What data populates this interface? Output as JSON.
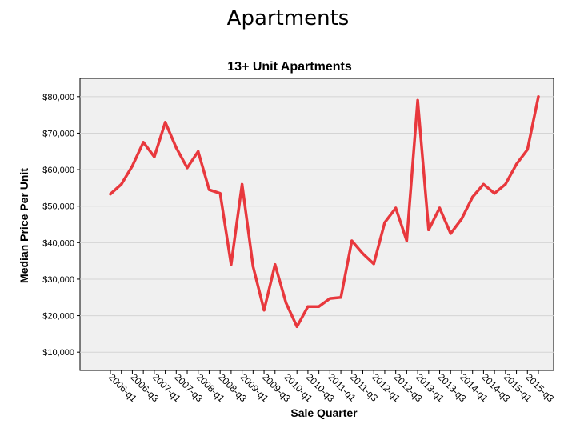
{
  "slide": {
    "title": "Apartments"
  },
  "colors": {
    "plot_bg": "#f0f0f0",
    "grid": "#d4d4d4",
    "line": "#e8383d",
    "axis": "#000000"
  },
  "chart_data": {
    "type": "line",
    "title": "13+ Unit Apartments",
    "xlabel": "Sale Quarter",
    "ylabel": "Median Price Per Unit",
    "ylim": [
      5000,
      85000
    ],
    "grid": true,
    "x_tick_labels": [
      "2006-q1",
      "2006-q3",
      "2007-q1",
      "2007-q3",
      "2008-q1",
      "2008-q3",
      "2009-q1",
      "2009-q3",
      "2010-q1",
      "2010-q3",
      "2011-q1",
      "2011-q3",
      "2012-q1",
      "2012-q3",
      "2013-q1",
      "2013-q3",
      "2014-q1",
      "2014-q3",
      "2015-q1",
      "2015-q3"
    ],
    "y_ticks": [
      10000,
      20000,
      30000,
      40000,
      50000,
      60000,
      70000,
      80000
    ],
    "y_tick_labels": [
      "$10,000",
      "$20,000",
      "$30,000",
      "$40,000",
      "$50,000",
      "$60,000",
      "$70,000",
      "$80,000"
    ],
    "x": [
      "2006-q1",
      "2006-q2",
      "2006-q3",
      "2006-q4",
      "2007-q1",
      "2007-q2",
      "2007-q3",
      "2007-q4",
      "2008-q1",
      "2008-q2",
      "2008-q3",
      "2008-q4",
      "2009-q1",
      "2009-q2",
      "2009-q3",
      "2009-q4",
      "2010-q1",
      "2010-q2",
      "2010-q3",
      "2010-q4",
      "2011-q1",
      "2011-q2",
      "2011-q3",
      "2011-q4",
      "2012-q1",
      "2012-q2",
      "2012-q3",
      "2012-q4",
      "2013-q1",
      "2013-q2",
      "2013-q3",
      "2013-q4",
      "2014-q1",
      "2014-q2",
      "2014-q3",
      "2014-q4",
      "2015-q1",
      "2015-q2",
      "2015-q3",
      "2015-q4"
    ],
    "values": [
      53300,
      56000,
      61000,
      67500,
      63500,
      73000,
      66000,
      60500,
      65000,
      54500,
      53500,
      34000,
      56000,
      33500,
      21500,
      34000,
      23500,
      17000,
      22500,
      22500,
      24700,
      25000,
      40500,
      37000,
      34200,
      45500,
      49500,
      40500,
      79000,
      43500,
      49500,
      42500,
      46500,
      52500,
      56000,
      53500,
      56000,
      61500,
      65500,
      80000
    ]
  }
}
